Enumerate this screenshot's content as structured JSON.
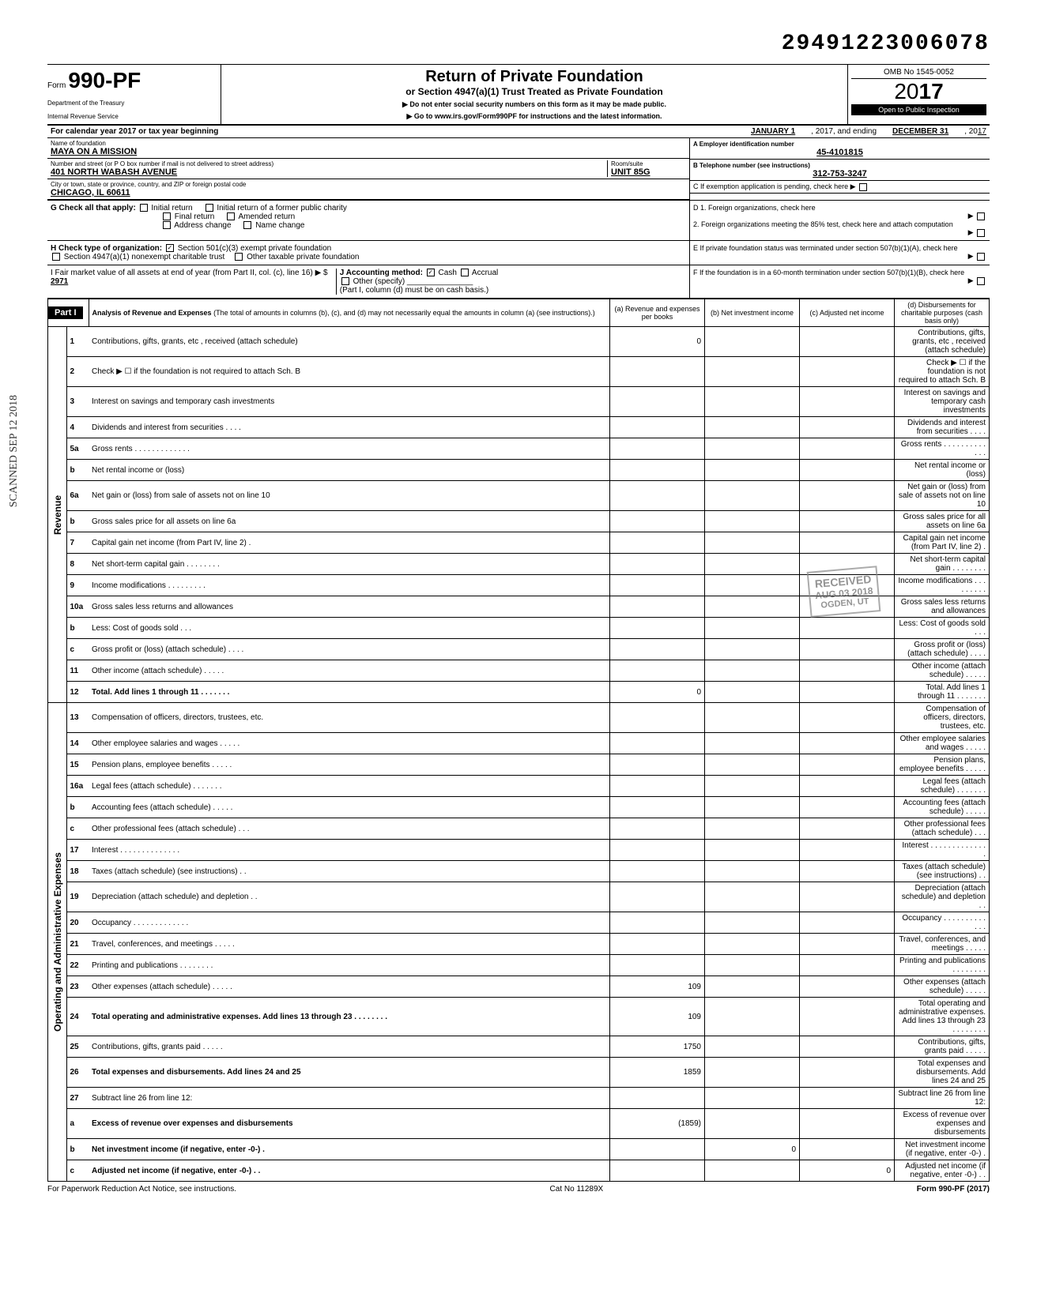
{
  "doc_number": "29491223006078",
  "form": {
    "label": "Form",
    "number": "990-PF",
    "dept1": "Department of the Treasury",
    "dept2": "Internal Revenue Service"
  },
  "title": {
    "main": "Return of Private Foundation",
    "sub": "or Section 4947(a)(1) Trust Treated as Private Foundation",
    "arrow1": "▶ Do not enter social security numbers on this form as it may be made public.",
    "arrow2": "▶ Go to www.irs.gov/Form990PF for instructions and the latest information."
  },
  "header_right": {
    "omb": "OMB No 1545-0052",
    "year_prefix": "20",
    "year_bold": "17",
    "inspection": "Open to Public Inspection"
  },
  "tax_year": {
    "label": "For calendar year 2017 or tax year beginning",
    "start": "JANUARY 1",
    "mid": ", 2017, and ending",
    "end": "DECEMBER 31",
    "end_suffix": ", 20",
    "end_year": "17"
  },
  "foundation": {
    "name_label": "Name of foundation",
    "name": "MAYA ON A MISSION",
    "addr_label": "Number and street (or P O box number if mail is not delivered to street address)",
    "addr": "401 NORTH WABASH AVENUE",
    "room_label": "Room/suite",
    "room": "UNIT 85G",
    "city_label": "City or town, state or province, country, and ZIP or foreign postal code",
    "city": "CHICAGO, IL 60611",
    "ein_label": "A  Employer identification number",
    "ein": "45-4101815",
    "phone_label": "B  Telephone number (see instructions)",
    "phone": "312-753-3247",
    "c_label": "C  If exemption application is pending, check here ▶"
  },
  "section_g": {
    "label": "G  Check all that apply:",
    "opt1": "Initial return",
    "opt2": "Initial return of a former public charity",
    "opt3": "Final return",
    "opt4": "Amended return",
    "opt5": "Address change",
    "opt6": "Name change"
  },
  "section_d": {
    "d1": "D  1. Foreign organizations, check here",
    "d2": "2. Foreign organizations meeting the 85% test, check here and attach computation"
  },
  "section_h": {
    "label": "H  Check type of organization:",
    "opt1": "Section 501(c)(3) exempt private foundation",
    "opt2": "Section 4947(a)(1) nonexempt charitable trust",
    "opt3": "Other taxable private foundation"
  },
  "section_e": "E  If private foundation status was terminated under section 507(b)(1)(A), check here",
  "section_i": {
    "label": "I  Fair market value of all assets at end of year  (from Part II, col. (c), line 16) ▶ $",
    "value": "2971"
  },
  "section_j": {
    "label": "J  Accounting method:",
    "cash": "Cash",
    "accrual": "Accrual",
    "other": "Other (specify)",
    "note": "(Part I, column (d) must be on cash basis.)"
  },
  "section_f": "F  If the foundation is in a 60-month termination under section 507(b)(1)(B), check here",
  "part1": {
    "header": "Part I",
    "title": "Analysis of Revenue and Expenses",
    "desc": "(The total of amounts in columns (b), (c), and (d) may not necessarily equal the amounts in column (a) (see instructions).)",
    "col_a": "(a) Revenue and expenses per books",
    "col_b": "(b) Net investment income",
    "col_c": "(c) Adjusted net income",
    "col_d": "(d) Disbursements for charitable purposes (cash basis only)"
  },
  "revenue_label": "Revenue",
  "expenses_label": "Operating and Administrative Expenses",
  "rows": [
    {
      "n": "1",
      "d": "Contributions, gifts, grants, etc , received (attach schedule)",
      "a": "0"
    },
    {
      "n": "2",
      "d": "Check ▶ ☐ if the foundation is not required to attach Sch. B"
    },
    {
      "n": "3",
      "d": "Interest on savings and temporary cash investments"
    },
    {
      "n": "4",
      "d": "Dividends and interest from securities  .  .  .  ."
    },
    {
      "n": "5a",
      "d": "Gross rents .  .  .  .  .  .  .  .  .  .  .  .  ."
    },
    {
      "n": "b",
      "d": "Net rental income or (loss)"
    },
    {
      "n": "6a",
      "d": "Net gain or (loss) from sale of assets not on line 10"
    },
    {
      "n": "b",
      "d": "Gross sales price for all assets on line 6a"
    },
    {
      "n": "7",
      "d": "Capital gain net income (from Part IV, line 2)  ."
    },
    {
      "n": "8",
      "d": "Net short-term capital gain .  .  .  .  .  .  .  ."
    },
    {
      "n": "9",
      "d": "Income modifications  .  .  .  .  .  .  .  .  ."
    },
    {
      "n": "10a",
      "d": "Gross sales less returns and allowances"
    },
    {
      "n": "b",
      "d": "Less: Cost of goods sold  .  .  ."
    },
    {
      "n": "c",
      "d": "Gross profit or (loss) (attach schedule)  .  .  .  ."
    },
    {
      "n": "11",
      "d": "Other income (attach schedule)  .  .  .  .  ."
    },
    {
      "n": "12",
      "d": "Total. Add lines 1 through 11 .  .  .  .  .  .  .",
      "a": "0",
      "bold": true
    },
    {
      "n": "13",
      "d": "Compensation of officers, directors, trustees, etc."
    },
    {
      "n": "14",
      "d": "Other employee salaries and wages .  .  .  .  ."
    },
    {
      "n": "15",
      "d": "Pension plans, employee benefits  .  .  .  .  ."
    },
    {
      "n": "16a",
      "d": "Legal fees (attach schedule)  .  .  .  .  .  .  ."
    },
    {
      "n": "b",
      "d": "Accounting fees (attach schedule)  .  .  .  .  ."
    },
    {
      "n": "c",
      "d": "Other professional fees (attach schedule) .  .  ."
    },
    {
      "n": "17",
      "d": "Interest  .  .  .  .  .  .  .  .  .  .  .  .  .  ."
    },
    {
      "n": "18",
      "d": "Taxes (attach schedule) (see instructions)  .  ."
    },
    {
      "n": "19",
      "d": "Depreciation (attach schedule) and depletion .  ."
    },
    {
      "n": "20",
      "d": "Occupancy .  .  .  .  .  .  .  .  .  .  .  .  ."
    },
    {
      "n": "21",
      "d": "Travel, conferences, and meetings  .  .  .  .  ."
    },
    {
      "n": "22",
      "d": "Printing and publications  .  .  .  .  .  .  .  ."
    },
    {
      "n": "23",
      "d": "Other expenses (attach schedule)  .  .  .  .  .",
      "a": "109"
    },
    {
      "n": "24",
      "d": "Total operating and administrative expenses. Add lines 13 through 23  .  .  .  .  .  .  .  .",
      "a": "109",
      "bold": true
    },
    {
      "n": "25",
      "d": "Contributions, gifts, grants paid  .  .  .  .  .",
      "a": "1750"
    },
    {
      "n": "26",
      "d": "Total expenses and disbursements. Add lines 24 and 25",
      "a": "1859",
      "bold": true
    },
    {
      "n": "27",
      "d": "Subtract line 26 from line 12:"
    },
    {
      "n": "a",
      "d": "Excess of revenue over expenses and disbursements",
      "a": "(1859)",
      "bold": true
    },
    {
      "n": "b",
      "d": "Net investment income (if negative, enter -0-)  .",
      "b": "0",
      "bold": true
    },
    {
      "n": "c",
      "d": "Adjusted net income (if negative, enter -0-)  .  .",
      "c": "0",
      "bold": true
    }
  ],
  "stamp": {
    "received": "RECEIVED",
    "date": "AUG 03 2018",
    "loc": "OGDEN, UT"
  },
  "footer": {
    "left": "For Paperwork Reduction Act Notice, see instructions.",
    "mid": "Cat No 11289X",
    "right": "Form 990-PF (2017)"
  },
  "margin": "SCANNED SEP 12 2018",
  "colors": {
    "black": "#000000",
    "white": "#ffffff",
    "shade": "#cccccc"
  }
}
